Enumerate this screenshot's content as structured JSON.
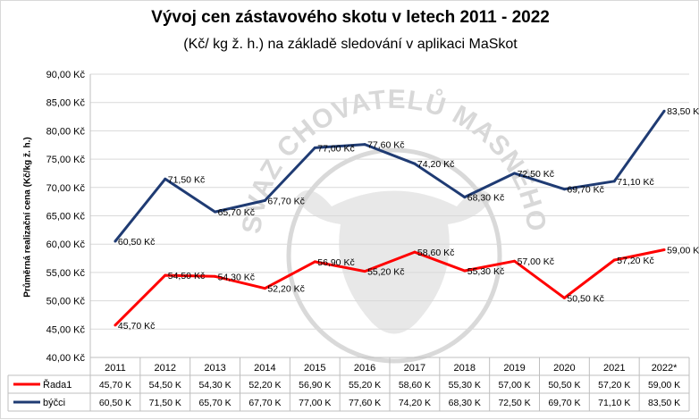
{
  "title": "Vývoj cen zástavového skotu v letech 2011 - 2022",
  "subtitle": "(Kč/ kg ž. h.) na základě sledování v aplikaci MaSkot",
  "watermark": "ČESKÝ SVAZ CHOVATELŮ MASNÉHO SKOTU",
  "chart_data": {
    "type": "line",
    "title": "Vývoj cen zástavového skotu v letech 2011 - 2022",
    "subtitle": "(Kč/ kg ž. h.) na základě sledování v aplikaci MaSkot",
    "xlabel": "",
    "ylabel": "Průměrná realizační cena (Kč/kg ž. h.)",
    "ylim": [
      40,
      90
    ],
    "ytick_step": 5,
    "ytick_labels": [
      "40,00 Kč",
      "45,00 Kč",
      "50,00 Kč",
      "55,00 Kč",
      "60,00 Kč",
      "65,00 Kč",
      "70,00 Kč",
      "75,00 Kč",
      "80,00 Kč",
      "85,00 Kč",
      "90,00 Kč"
    ],
    "grid": true,
    "legend": "data-table",
    "categories": [
      "2011",
      "2012",
      "2013",
      "2014",
      "2015",
      "2016",
      "2017",
      "2018",
      "2019",
      "2020",
      "2021",
      "2022*"
    ],
    "series": [
      {
        "name": "Řada1",
        "color": "#ff0000",
        "values": [
          45.7,
          54.5,
          54.3,
          52.2,
          56.9,
          55.2,
          58.6,
          55.3,
          57.0,
          50.5,
          57.2,
          59.0
        ],
        "point_labels": [
          "45,70 Kč",
          "54,50 Kč",
          "54,30 Kč",
          "52,20 Kč",
          "56,90 Kč",
          "55,20 Kč",
          "58,60 Kč",
          "55,30 Kč",
          "57,00 Kč",
          "50,50 Kč",
          "57,20 Kč",
          "59,00 Kč"
        ],
        "table_labels": [
          "45,70 K",
          "54,50 K",
          "54,30 K",
          "52,20 K",
          "56,90 K",
          "55,20 K",
          "58,60 K",
          "55,30 K",
          "57,00 K",
          "50,50 K",
          "57,20 K",
          "59,00 K"
        ]
      },
      {
        "name": "býčci",
        "color": "#1f3b73",
        "values": [
          60.5,
          71.5,
          65.7,
          67.7,
          77.0,
          77.6,
          74.2,
          68.3,
          72.5,
          69.7,
          71.1,
          83.5
        ],
        "point_labels": [
          "60,50 Kč",
          "71,50 Kč",
          "65,70 Kč",
          "67,70 Kč",
          "77,00 Kč",
          "77,60 Kč",
          "74,20 Kč",
          "68,30 Kč",
          "72,50 Kč",
          "69,70 Kč",
          "71,10 Kč",
          "83,50 Kč"
        ],
        "table_labels": [
          "60,50 K",
          "71,50 K",
          "65,70 K",
          "67,70 K",
          "77,00 K",
          "77,60 K",
          "74,20 K",
          "68,30 K",
          "72,50 K",
          "69,70 K",
          "71,10 K",
          "83,50 K"
        ]
      }
    ]
  }
}
